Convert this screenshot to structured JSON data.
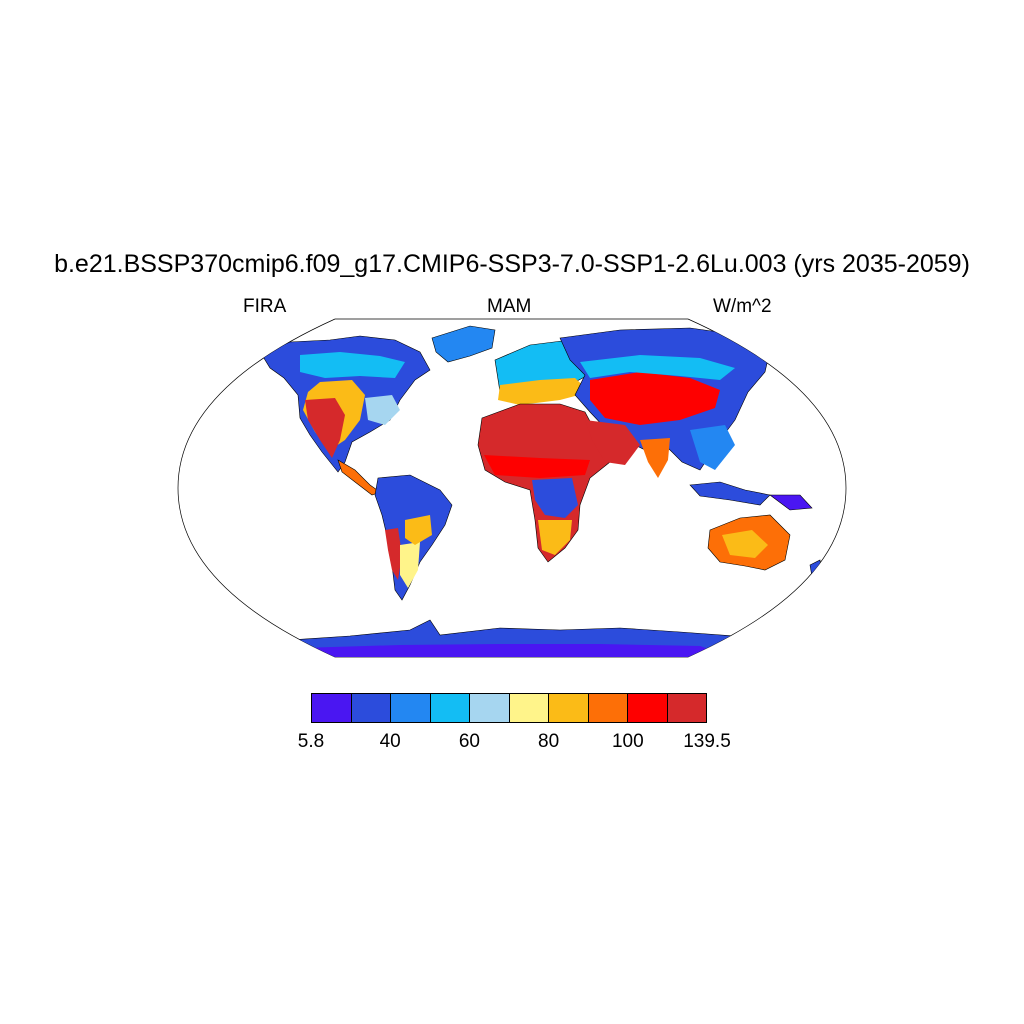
{
  "title": "b.e21.BSSP370cmip6.f09_g17.CMIP6-SSP3-7.0-SSP1-2.6Lu.003 (yrs 2035-2059)",
  "subtitles": {
    "left": "FIRA",
    "center": "MAM",
    "right": "W/m^2"
  },
  "colorbar": {
    "colors": [
      "#4a16f2",
      "#2c4cdc",
      "#2387f2",
      "#13bdf4",
      "#a6d6f0",
      "#fff48a",
      "#fbbb17",
      "#fd6f07",
      "#fe0000",
      "#d5292b"
    ],
    "labels": [
      "5.8",
      "40",
      "60",
      "80",
      "100",
      "139.5"
    ]
  },
  "palette": {
    "ocean": "#ffffff",
    "coast": "#000000"
  }
}
